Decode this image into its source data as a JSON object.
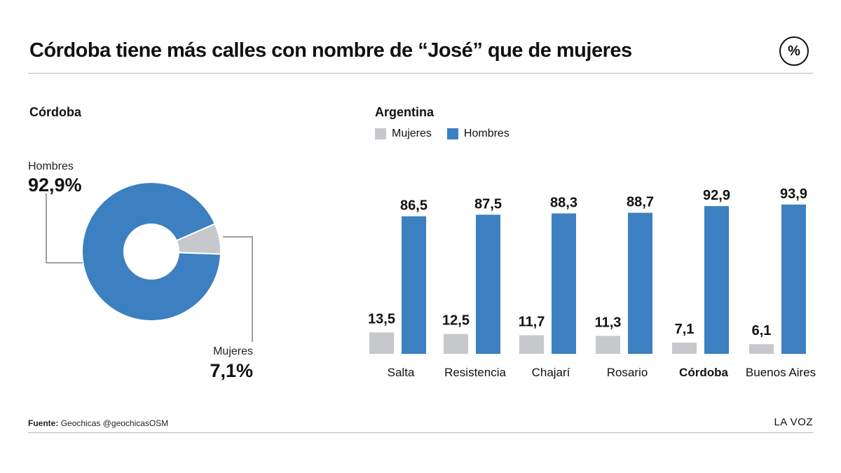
{
  "title": "Córdoba tiene más calles con nombre de “José” que de mujeres",
  "badge": "%",
  "source_label": "Fuente:",
  "source_text": "Geochicas @geochicasOSM",
  "brand": "LA VOZ",
  "colors": {
    "hombres": "#3d80c2",
    "mujeres": "#c7c8cc",
    "line": "#444444"
  },
  "chart_data": [
    {
      "type": "pie",
      "title": "Córdoba",
      "slices": [
        {
          "name": "Hombres",
          "value": 92.9,
          "label": "92,9%"
        },
        {
          "name": "Mujeres",
          "value": 7.1,
          "label": "7,1%"
        }
      ]
    },
    {
      "type": "bar",
      "title": "Argentina",
      "categories": [
        "Salta",
        "Resistencia",
        "Chajarí",
        "Rosario",
        "Córdoba",
        "Buenos Aires"
      ],
      "highlight": "Córdoba",
      "legend": [
        "Mujeres",
        "Hombres"
      ],
      "legend_position": "top-left",
      "series": [
        {
          "name": "Mujeres",
          "values": [
            13.5,
            12.5,
            11.7,
            11.3,
            7.1,
            6.1
          ],
          "labels": [
            "13,5",
            "12,5",
            "11,7",
            "11,3",
            "7,1",
            "6,1"
          ]
        },
        {
          "name": "Hombres",
          "values": [
            86.5,
            87.5,
            88.3,
            88.7,
            92.9,
            93.9
          ],
          "labels": [
            "86,5",
            "87,5",
            "88,3",
            "88,7",
            "92,9",
            "93,9"
          ]
        }
      ],
      "ylim": [
        0,
        100
      ],
      "grid": false
    }
  ]
}
